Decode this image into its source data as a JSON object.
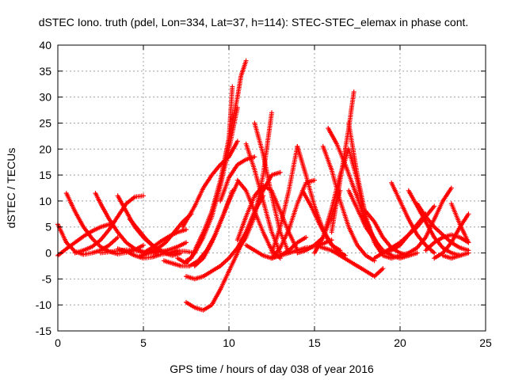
{
  "chart_data": {
    "type": "scatter",
    "title": "dSTEC Iono. truth (pdel, Lon=334, Lat=37, h=114): STEC-STEC_elemax in phase cont.",
    "xlabel": "GPS time / hours of day 038 of year 2016",
    "ylabel": "dSTEC  / TECUs",
    "xlim": [
      0,
      25
    ],
    "ylim": [
      -15,
      40
    ],
    "xticks": [
      0,
      5,
      10,
      15,
      20,
      25
    ],
    "yticks": [
      -15,
      -10,
      -5,
      0,
      5,
      10,
      15,
      20,
      25,
      30,
      35,
      40
    ],
    "grid": true,
    "marker": "+",
    "color": "#ff0000",
    "series": [
      {
        "x": [
          0.0,
          0.5,
          1.0,
          1.5,
          2.0,
          2.5,
          3.0,
          3.5
        ],
        "y": [
          5.5,
          2.0,
          0.3,
          -0.3,
          0.0,
          0.5,
          1.5,
          3.0
        ]
      },
      {
        "x": [
          0.5,
          1.0,
          1.5,
          2.0,
          2.5,
          3.0,
          3.5,
          4.0,
          4.5,
          5.0
        ],
        "y": [
          11.5,
          8.0,
          5.0,
          2.8,
          1.2,
          0.3,
          -0.2,
          0.1,
          0.6,
          1.5
        ]
      },
      {
        "x": [
          0.0,
          0.5,
          1.0,
          1.5,
          2.0,
          2.5,
          3.0
        ],
        "y": [
          -0.5,
          0.8,
          2.0,
          3.2,
          4.2,
          5.0,
          5.5
        ]
      },
      {
        "x": [
          2.2,
          2.5,
          3.0,
          3.5,
          4.0,
          4.5,
          5.0,
          5.5,
          6.0
        ],
        "y": [
          11.5,
          9.5,
          6.5,
          4.0,
          2.0,
          0.8,
          0.2,
          0.0,
          0.5
        ]
      },
      {
        "x": [
          1.0,
          1.5,
          2.0,
          2.5,
          3.0,
          3.5,
          4.0,
          4.5,
          5.0
        ],
        "y": [
          0.0,
          0.5,
          1.2,
          2.5,
          4.5,
          7.0,
          9.5,
          10.8,
          11.0
        ]
      },
      {
        "x": [
          3.5,
          4.0,
          4.5,
          5.0,
          5.5,
          6.0,
          6.5,
          7.0
        ],
        "y": [
          11.0,
          8.0,
          5.0,
          3.0,
          1.5,
          0.5,
          0.0,
          0.5
        ]
      },
      {
        "x": [
          4.2,
          4.7,
          5.2,
          5.7,
          6.2,
          6.7,
          7.2
        ],
        "y": [
          6.5,
          4.5,
          2.5,
          1.0,
          0.0,
          -0.5,
          0.0
        ]
      },
      {
        "x": [
          2.5,
          3.0,
          3.5,
          4.0,
          4.5,
          5.0,
          5.5,
          6.0,
          6.5,
          7.0,
          7.5
        ],
        "y": [
          0.0,
          0.2,
          0.4,
          0.6,
          0.5,
          0.2,
          0.0,
          0.2,
          0.6,
          1.2,
          2.0
        ]
      },
      {
        "x": [
          3.5,
          4.0,
          4.5,
          5.0,
          5.5,
          6.0,
          6.5,
          7.0,
          7.5,
          8.0
        ],
        "y": [
          0.8,
          0.3,
          -0.5,
          -1.0,
          -0.8,
          -0.3,
          0.0,
          0.4,
          0.3,
          0.0
        ]
      },
      {
        "x": [
          5.0,
          5.5,
          6.0,
          6.5,
          7.0,
          7.5
        ],
        "y": [
          0.0,
          1.0,
          2.2,
          3.2,
          4.0,
          4.5
        ]
      },
      {
        "x": [
          4.8,
          5.3,
          5.8,
          6.3,
          6.8,
          7.3,
          7.8
        ],
        "y": [
          -0.6,
          0.0,
          0.8,
          2.0,
          4.0,
          6.0,
          7.5
        ]
      },
      {
        "x": [
          6.2,
          6.7,
          7.2,
          7.7,
          8.2,
          8.7,
          9.2,
          9.7,
          10.2
        ],
        "y": [
          -1.5,
          -2.0,
          -2.5,
          -2.5,
          -1.5,
          0.5,
          3.5,
          7.5,
          12.0
        ]
      },
      {
        "x": [
          7.0,
          7.5,
          8.0,
          8.5,
          9.0,
          9.5,
          10.0,
          10.2
        ],
        "y": [
          -1.0,
          -2.0,
          0.0,
          3.0,
          7.0,
          13.0,
          22.0,
          32.0
        ]
      },
      {
        "x": [
          7.5,
          7.8,
          8.0,
          8.5,
          9.0,
          9.5,
          10.0,
          10.5
        ],
        "y": [
          -1.5,
          -1.0,
          0.5,
          4.0,
          8.0,
          13.0,
          20.0,
          28.0
        ]
      },
      {
        "x": [
          7.3,
          8.0,
          8.5,
          9.0,
          9.5,
          10.0,
          10.5
        ],
        "y": [
          5.0,
          9.0,
          12.5,
          15.0,
          17.0,
          18.5,
          21.5
        ]
      },
      {
        "x": [
          8.0,
          8.5,
          9.0,
          9.5,
          10.0,
          10.5
        ],
        "y": [
          -2.5,
          -1.0,
          2.0,
          6.0,
          10.0,
          13.5
        ]
      },
      {
        "x": [
          9.0,
          9.5,
          10.0,
          10.5,
          10.7,
          11.0
        ],
        "y": [
          8.0,
          14.0,
          22.0,
          30.0,
          34.0,
          37.0
        ]
      },
      {
        "x": [
          9.5,
          10.0,
          10.5,
          11.0,
          11.5
        ],
        "y": [
          10.0,
          14.5,
          17.0,
          18.0,
          18.5
        ]
      },
      {
        "x": [
          7.5,
          8.0,
          8.5,
          9.0,
          9.5,
          10.0,
          10.5,
          11.0,
          11.5,
          12.0,
          12.5,
          13.0
        ],
        "y": [
          -4.5,
          -5.0,
          -4.5,
          -3.5,
          -2.5,
          -1.0,
          1.0,
          4.0,
          8.0,
          12.0,
          15.0,
          15.5
        ]
      },
      {
        "x": [
          7.5,
          8.0,
          8.5,
          9.0,
          9.5,
          10.0,
          10.5,
          11.0,
          11.5,
          12.0
        ],
        "y": [
          -9.5,
          -10.5,
          -11.0,
          -10.0,
          -7.0,
          -3.5,
          0.0,
          4.0,
          8.0,
          11.0
        ]
      },
      {
        "x": [
          10.5,
          11.0,
          11.5,
          12.0,
          12.5,
          13.0
        ],
        "y": [
          14.0,
          12.0,
          8.0,
          4.0,
          0.5,
          -1.0
        ]
      },
      {
        "x": [
          11.0,
          11.5,
          12.0,
          12.5,
          13.0
        ],
        "y": [
          21.0,
          16.0,
          10.0,
          4.0,
          0.0
        ]
      },
      {
        "x": [
          11.5,
          12.0,
          12.5,
          13.0,
          13.5
        ],
        "y": [
          25.0,
          19.0,
          11.0,
          4.0,
          0.0
        ]
      },
      {
        "x": [
          10.5,
          11.0,
          11.5,
          12.0,
          12.5
        ],
        "y": [
          0.5,
          3.0,
          7.0,
          15.0,
          27.0
        ]
      },
      {
        "x": [
          10.5,
          11.0,
          11.5,
          12.0,
          12.5,
          13.0,
          13.5,
          14.0
        ],
        "y": [
          2.5,
          7.0,
          11.0,
          13.0,
          12.0,
          8.0,
          4.0,
          0.5
        ]
      },
      {
        "x": [
          11.0,
          11.5,
          12.0,
          12.5,
          13.0,
          13.5,
          14.0,
          14.5
        ],
        "y": [
          1.5,
          0.5,
          -0.5,
          -1.0,
          -0.5,
          0.5,
          2.0,
          3.0
        ]
      },
      {
        "x": [
          12.5,
          13.0,
          13.5,
          14.0
        ],
        "y": [
          0.0,
          5.0,
          12.0,
          20.5
        ]
      },
      {
        "x": [
          12.5,
          13.0,
          13.5,
          14.0,
          14.5,
          15.0
        ],
        "y": [
          -1.0,
          1.0,
          4.5,
          9.5,
          13.5,
          14.0
        ]
      },
      {
        "x": [
          14.0,
          14.5,
          15.0,
          15.5,
          16.0,
          16.5
        ],
        "y": [
          20.5,
          15.0,
          9.0,
          4.5,
          1.5,
          0.5
        ]
      },
      {
        "x": [
          14.3,
          14.8,
          15.3,
          15.8,
          16.3,
          16.8
        ],
        "y": [
          12.0,
          9.0,
          5.5,
          2.5,
          0.5,
          -0.5
        ]
      },
      {
        "x": [
          12.5,
          13.0,
          13.5,
          14.0,
          14.5,
          15.0,
          15.5,
          16.0
        ],
        "y": [
          -1.0,
          -0.5,
          0.0,
          0.5,
          1.0,
          1.2,
          1.8,
          2.5
        ]
      },
      {
        "x": [
          14.0,
          14.5,
          15.0,
          15.5,
          16.0,
          16.5
        ],
        "y": [
          0.0,
          0.5,
          1.5,
          3.0,
          7.0,
          12.0
        ]
      },
      {
        "x": [
          15.0,
          15.5,
          16.0,
          16.5,
          17.0,
          17.5,
          18.0
        ],
        "y": [
          0.0,
          3.0,
          8.5,
          15.0,
          20.0,
          14.0,
          5.0
        ]
      },
      {
        "x": [
          15.5,
          16.0,
          16.5,
          17.0,
          17.5,
          18.0,
          18.5
        ],
        "y": [
          20.5,
          16.0,
          10.0,
          5.0,
          1.5,
          -0.5,
          -1.5
        ]
      },
      {
        "x": [
          15.8,
          16.3,
          16.8,
          17.3,
          17.8,
          18.3,
          18.8
        ],
        "y": [
          24.0,
          21.0,
          17.0,
          12.5,
          8.0,
          4.0,
          1.0
        ]
      },
      {
        "x": [
          16.0,
          16.5,
          17.0,
          17.3
        ],
        "y": [
          4.0,
          14.0,
          24.0,
          31.0
        ]
      },
      {
        "x": [
          17.0,
          17.5,
          18.0,
          18.5,
          19.0,
          19.5,
          20.0
        ],
        "y": [
          25.0,
          15.0,
          7.0,
          2.0,
          -0.5,
          -1.0,
          -0.5
        ]
      },
      {
        "x": [
          15.0,
          15.5,
          16.0,
          16.5,
          17.0,
          17.5,
          18.0,
          18.5,
          19.0
        ],
        "y": [
          1.5,
          1.0,
          0.5,
          -0.5,
          -1.5,
          -2.5,
          -3.5,
          -4.5,
          -3.0
        ]
      },
      {
        "x": [
          17.0,
          17.5,
          18.0,
          18.5,
          19.0,
          19.5,
          20.0,
          20.5
        ],
        "y": [
          12.0,
          8.5,
          5.0,
          2.5,
          0.5,
          -0.5,
          -1.0,
          -0.5
        ]
      },
      {
        "x": [
          18.0,
          18.5,
          19.0,
          19.5,
          20.0,
          20.5,
          21.0
        ],
        "y": [
          8.0,
          6.0,
          3.0,
          1.0,
          0.0,
          -0.5,
          0.0
        ]
      },
      {
        "x": [
          18.5,
          19.0,
          19.5,
          20.0,
          20.5,
          21.0,
          21.5,
          22.0
        ],
        "y": [
          -1.0,
          0.0,
          1.0,
          2.0,
          3.5,
          5.0,
          7.0,
          9.0
        ]
      },
      {
        "x": [
          19.5,
          20.0,
          20.5,
          21.0,
          21.5,
          22.0
        ],
        "y": [
          13.5,
          10.0,
          6.5,
          3.5,
          1.5,
          0.0
        ]
      },
      {
        "x": [
          19.0,
          19.5,
          20.0,
          20.5,
          21.0,
          21.5
        ],
        "y": [
          0.0,
          0.5,
          1.5,
          3.5,
          5.5,
          7.5
        ]
      },
      {
        "x": [
          20.5,
          21.0,
          21.5,
          22.0,
          22.5,
          23.0,
          23.5
        ],
        "y": [
          12.0,
          9.0,
          6.0,
          3.0,
          1.0,
          0.0,
          -0.5
        ]
      },
      {
        "x": [
          21.0,
          21.5,
          22.0,
          22.5,
          23.0,
          23.5,
          24.0
        ],
        "y": [
          9.5,
          7.0,
          5.0,
          3.5,
          2.0,
          1.0,
          0.5
        ]
      },
      {
        "x": [
          20.0,
          20.5,
          21.0,
          21.5,
          22.0,
          22.5,
          23.0
        ],
        "y": [
          -0.5,
          0.0,
          1.0,
          3.0,
          6.5,
          10.0,
          12.5
        ]
      },
      {
        "x": [
          21.5,
          22.0,
          22.5,
          23.0,
          23.5,
          24.0
        ],
        "y": [
          0.5,
          2.0,
          3.0,
          3.5,
          3.0,
          2.0
        ]
      },
      {
        "x": [
          22.0,
          22.5,
          23.0,
          23.5,
          24.0
        ],
        "y": [
          -1.0,
          0.0,
          2.0,
          5.0,
          7.5
        ]
      },
      {
        "x": [
          23.0,
          23.5,
          24.0
        ],
        "y": [
          9.5,
          5.5,
          2.0
        ]
      },
      {
        "x": [
          22.5,
          23.0,
          23.5,
          24.0
        ],
        "y": [
          -0.5,
          -1.0,
          -0.5,
          0.0
        ]
      }
    ]
  }
}
